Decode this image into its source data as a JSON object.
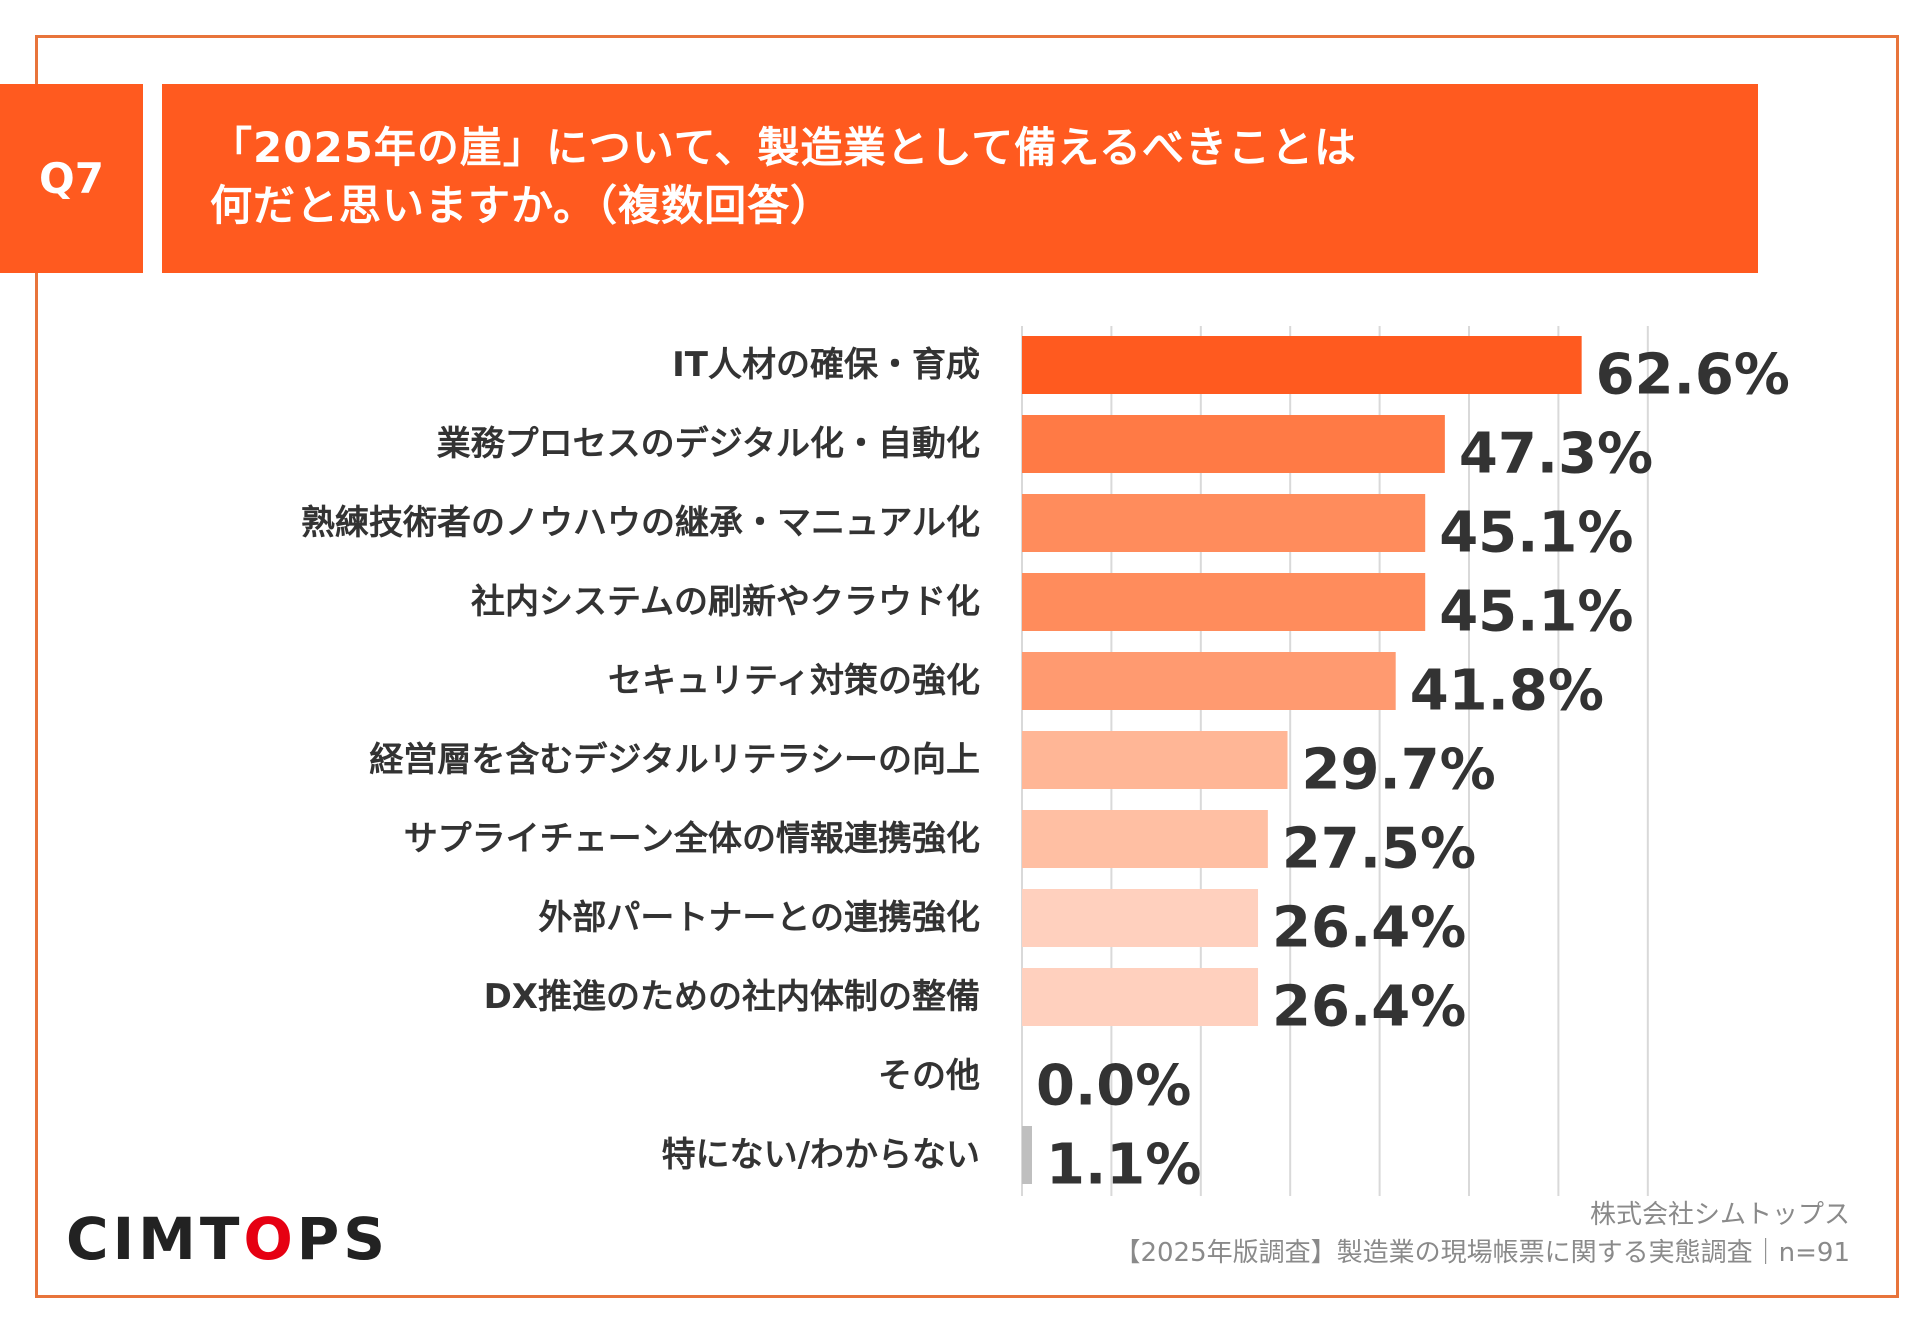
{
  "header": {
    "question_label": "Q7",
    "title_line1": "「2025年の崖」について、製造業として備えるべきことは",
    "title_line2": "何だと思いますか。（複数回答）"
  },
  "footer": {
    "logo_left": "CIMT",
    "logo_o": "O",
    "logo_right": "PS",
    "company": "株式会社シムトップス",
    "survey": "【2025年版調査】製造業の現場帳票に関する実態調査｜n=91"
  },
  "colors": {
    "accent": "#ff5a1f",
    "gray_bar": "#bfbfbf",
    "grid": "#d9d9d9",
    "bar_shades": [
      "#ff5a1f",
      "#ff7a45",
      "#ff8c5c",
      "#ff8c5c",
      "#ff9a70",
      "#ffb696",
      "#ffbfa3",
      "#ffd0be",
      "#ffd0be",
      "#ffd0be",
      "#bfbfbf"
    ]
  },
  "chart_data": {
    "type": "bar",
    "orientation": "horizontal",
    "title": "「2025年の崖」について、製造業として備えるべきことは何だと思いますか。（複数回答）",
    "categories": [
      "IT人材の確保・育成",
      "業務プロセスのデジタル化・自動化",
      "熟練技術者のノウハウの継承・マニュアル化",
      "社内システムの刷新やクラウド化",
      "セキュリティ対策の強化",
      "経営層を含むデジタルリテラシーの向上",
      "サプライチェーン全体の情報連携強化",
      "外部パートナーとの連携強化",
      "DX推進のための社内体制の整備",
      "その他",
      "特にない/わからない"
    ],
    "values": [
      62.6,
      47.3,
      45.1,
      45.1,
      41.8,
      29.7,
      27.5,
      26.4,
      26.4,
      0.0,
      1.1
    ],
    "value_labels": [
      "62.6%",
      "47.3%",
      "45.1%",
      "45.1%",
      "41.8%",
      "29.7%",
      "27.5%",
      "26.4%",
      "26.4%",
      "0.0%",
      "1.1%"
    ],
    "xlim": [
      0,
      70
    ],
    "grid": true,
    "unit": "%"
  }
}
